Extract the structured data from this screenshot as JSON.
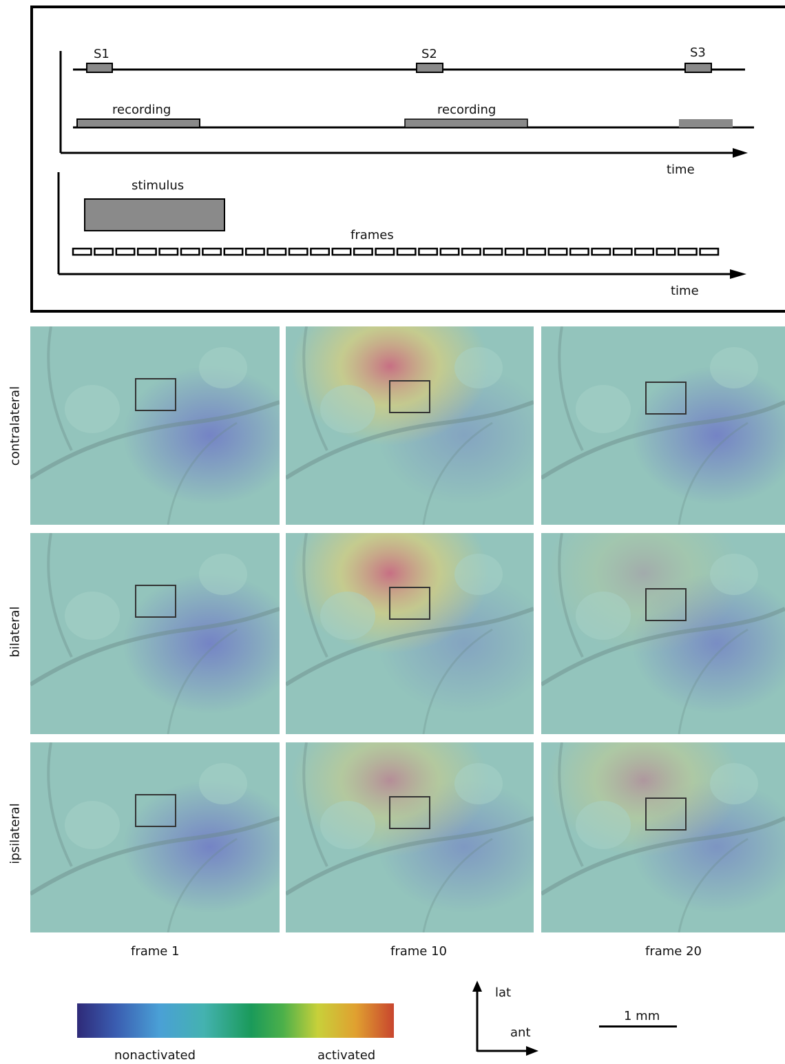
{
  "timing": {
    "stimuli": [
      "S1",
      "S2",
      "S3"
    ],
    "recording_labels": [
      "recording",
      "recording"
    ],
    "time_label_top": "time",
    "stimulus_label": "stimulus",
    "frames_label": "frames",
    "time_label_bottom": "time",
    "frame_count": 30
  },
  "rows": [
    "contralateral",
    "bilateral",
    "ipsilateral"
  ],
  "columns": [
    "frame 1",
    "frame 10",
    "frame 20"
  ],
  "activation": [
    [
      0.0,
      0.85,
      0.0
    ],
    [
      0.0,
      0.85,
      0.25
    ],
    [
      0.0,
      0.55,
      0.45
    ]
  ],
  "colorbar": {
    "low_label": "nonactivated",
    "high_label": "activated",
    "colors": [
      "#2e2a78",
      "#3a5cb0",
      "#4aa0d6",
      "#44b2b0",
      "#1a9a5a",
      "#4cb04a",
      "#c8d03a",
      "#e0a030",
      "#c8452e"
    ]
  },
  "orientation": {
    "up": "lat",
    "right": "ant"
  },
  "scale_bar": {
    "label": "1 mm"
  }
}
